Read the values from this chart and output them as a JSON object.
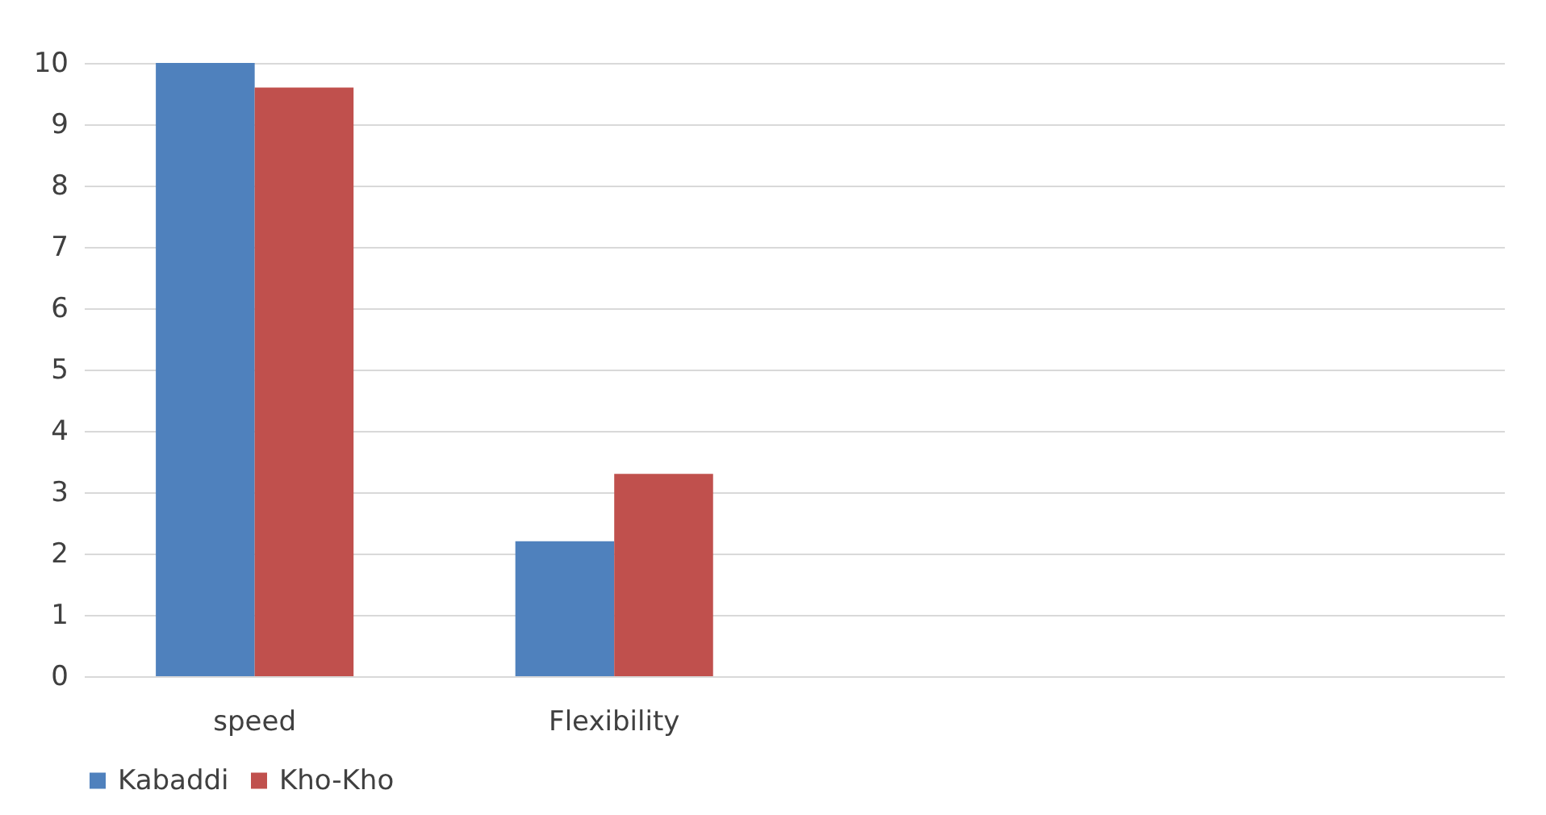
{
  "chart_data": {
    "type": "bar",
    "categories": [
      "speed",
      "Flexibility",
      null,
      null
    ],
    "series": [
      {
        "name": "Kabaddi",
        "color": "#4f81bd",
        "values": [
          10,
          2.2,
          null,
          null
        ]
      },
      {
        "name": "Kho-Kho",
        "color": "#c0504d",
        "values": [
          9.6,
          3.3,
          null,
          null
        ]
      }
    ],
    "ylim": [
      0,
      10
    ],
    "yticks": [
      0,
      1,
      2,
      3,
      4,
      5,
      6,
      7,
      8,
      9,
      10
    ],
    "grid": "y",
    "legend": "bottom"
  }
}
